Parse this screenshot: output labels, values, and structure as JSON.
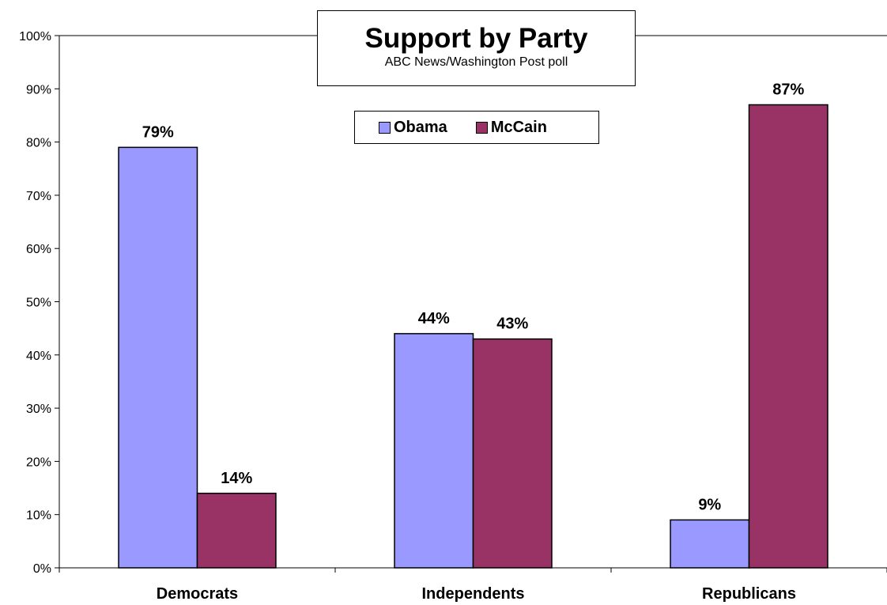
{
  "chart_data": {
    "type": "bar",
    "title": "Support by Party",
    "subtitle": "ABC News/Washington Post poll",
    "categories": [
      "Democrats",
      "Independents",
      "Republicans"
    ],
    "series": [
      {
        "name": "Obama",
        "values": [
          79,
          44,
          9
        ],
        "color": "#9999ff"
      },
      {
        "name": "McCain",
        "values": [
          14,
          43,
          87
        ],
        "color": "#993366"
      }
    ],
    "data_labels": [
      [
        "79%",
        "44%",
        "9%"
      ],
      [
        "14%",
        "43%",
        "87%"
      ]
    ],
    "y_ticks": [
      "0%",
      "10%",
      "20%",
      "30%",
      "40%",
      "50%",
      "60%",
      "70%",
      "80%",
      "90%",
      "100%"
    ],
    "ylim": [
      0,
      100
    ],
    "grid": false,
    "legend_position": "top-center"
  }
}
